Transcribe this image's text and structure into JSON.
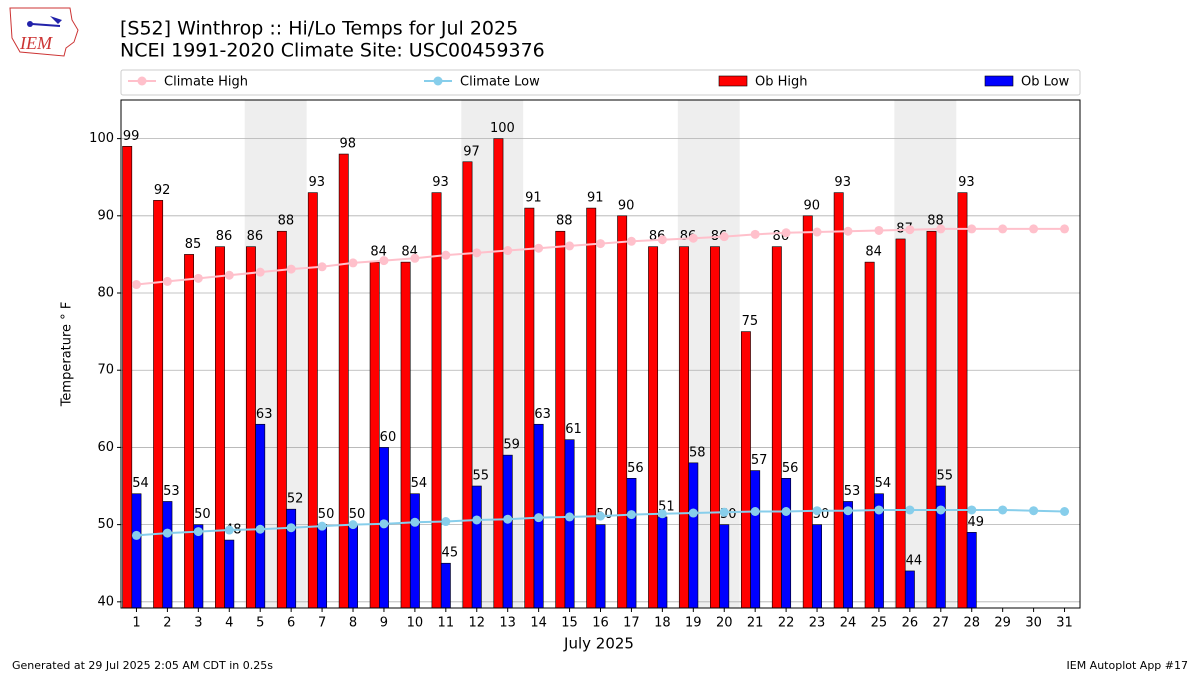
{
  "logo_text": "IEM",
  "footer_left": "Generated at 29 Jul 2025 2:05 AM CDT in 0.25s",
  "footer_right": "IEM Autoplot App #17",
  "chart_data": {
    "type": "bar",
    "title": "[S52] Winthrop :: Hi/Lo Temps for Jul 2025",
    "subtitle": "NCEI 1991-2020 Climate Site: USC00459376",
    "x_label": "July 2025",
    "y_label": "Temperature ° F",
    "x": [
      1,
      2,
      3,
      4,
      5,
      6,
      7,
      8,
      9,
      10,
      11,
      12,
      13,
      14,
      15,
      16,
      17,
      18,
      19,
      20,
      21,
      22,
      23,
      24,
      25,
      26,
      27,
      28,
      29,
      30,
      31
    ],
    "xlim": [
      0.5,
      31.5
    ],
    "xticks": [
      1,
      2,
      3,
      4,
      5,
      6,
      7,
      8,
      9,
      10,
      11,
      12,
      13,
      14,
      15,
      16,
      17,
      18,
      19,
      20,
      21,
      22,
      23,
      24,
      25,
      26,
      27,
      28,
      29,
      30,
      31
    ],
    "ylim": [
      39.2,
      105
    ],
    "yticks": [
      40,
      50,
      60,
      70,
      80,
      90,
      100
    ],
    "grid": true,
    "shaded_ranges": [
      [
        4.5,
        6.5
      ],
      [
        11.5,
        13.5
      ],
      [
        18.5,
        20.5
      ],
      [
        25.5,
        27.5
      ]
    ],
    "shade_color": "#eeeeee",
    "series": [
      {
        "name": "Climate High",
        "type": "line",
        "color": "#ffc0cb",
        "values": [
          81.1,
          81.5,
          81.9,
          82.3,
          82.7,
          83.1,
          83.4,
          83.9,
          84.2,
          84.5,
          84.9,
          85.2,
          85.5,
          85.8,
          86.1,
          86.4,
          86.7,
          86.9,
          87.1,
          87.3,
          87.6,
          87.8,
          87.9,
          88.0,
          88.1,
          88.2,
          88.3,
          88.3,
          88.3,
          88.3,
          88.3
        ]
      },
      {
        "name": "Climate Low",
        "type": "line",
        "color": "#87ceeb",
        "values": [
          48.6,
          48.9,
          49.1,
          49.3,
          49.4,
          49.6,
          49.8,
          50.0,
          50.1,
          50.3,
          50.4,
          50.6,
          50.7,
          50.9,
          51.0,
          51.1,
          51.3,
          51.4,
          51.5,
          51.6,
          51.7,
          51.7,
          51.8,
          51.8,
          51.9,
          51.9,
          51.9,
          51.9,
          51.9,
          51.8,
          51.7
        ]
      },
      {
        "name": "Ob High",
        "type": "bar",
        "color": "#ff0000",
        "values": [
          99,
          92,
          85,
          86,
          86,
          88,
          93,
          98,
          84,
          84,
          93,
          97,
          100,
          91,
          88,
          91,
          90,
          86,
          86,
          86,
          75,
          86,
          90,
          93,
          84,
          87,
          88,
          93,
          null,
          null,
          null
        ]
      },
      {
        "name": "Ob Low",
        "type": "bar",
        "color": "#0000ff",
        "values": [
          54,
          53,
          50,
          48,
          63,
          52,
          50,
          50,
          60,
          54,
          45,
          55,
          59,
          63,
          61,
          50,
          56,
          51,
          58,
          50,
          57,
          56,
          50,
          53,
          54,
          44,
          55,
          49,
          null,
          null,
          null
        ]
      }
    ]
  }
}
